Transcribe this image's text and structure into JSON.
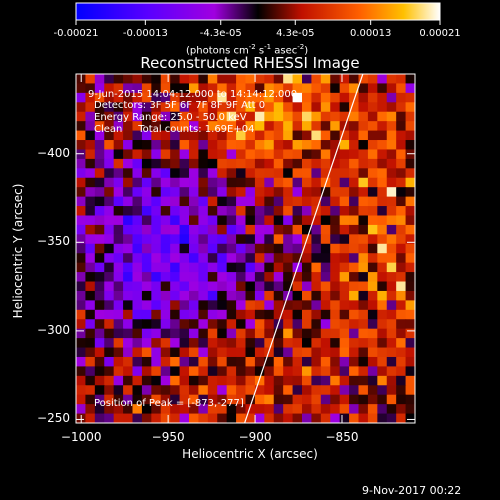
{
  "colorbar": {
    "tick_labels": [
      "-0.00021",
      "-0.00013",
      "-4.3e-05",
      "4.3e-05",
      "0.00013",
      "0.00021"
    ],
    "tick_values": [
      -0.00021,
      -0.00013,
      -4.3e-05,
      4.3e-05,
      0.00013,
      0.00021
    ],
    "range": [
      -0.00021,
      0.00021
    ],
    "units_prefix": "(photons cm",
    "units_sup1": "-2",
    "units_mid": " s",
    "units_sup2": "-1",
    "units_mid2": " asec",
    "units_sup3": "-2",
    "units_suffix": ")",
    "colors": [
      "#0000ff",
      "#5a00ff",
      "#a000e0",
      "#000000",
      "#c01000",
      "#ff6000",
      "#ffc000",
      "#ffffff"
    ]
  },
  "chart_data": {
    "type": "heatmap",
    "title": "Reconstructed RHESSI Image",
    "xlabel": "Heliocentric X (arcsec)",
    "ylabel": "Heliocentric Y (arcsec)",
    "xlim": [
      -1003,
      -808
    ],
    "ylim": [
      -445,
      -248
    ],
    "x_ticks": [
      -1000,
      -950,
      -900,
      -850
    ],
    "x_tick_labels": [
      "−1000",
      "−950",
      "−900",
      "−850"
    ],
    "y_ticks": [
      -250,
      -300,
      -350,
      -400
    ],
    "y_tick_labels": [
      "−250",
      "−300",
      "−350",
      "−400"
    ],
    "annotations": [
      "9-Jun-2015 14:04:12.000 to 14:14:12.000",
      "Detectors: 3F 5F 6F 7F 8F 9F Att 0",
      "Energy Range: 25.0 - 50.0 keV",
      "Clean     Total counts: 1.69E+04"
    ],
    "peak_label": "Position of Peak = [-873,-277]",
    "peak": [
      -873,
      -277
    ],
    "limb_line": [
      [
        -906,
        -248
      ],
      [
        -838,
        -445
      ]
    ],
    "grid": false
  },
  "footer": {
    "timestamp": "9-Nov-2017 00:22"
  }
}
